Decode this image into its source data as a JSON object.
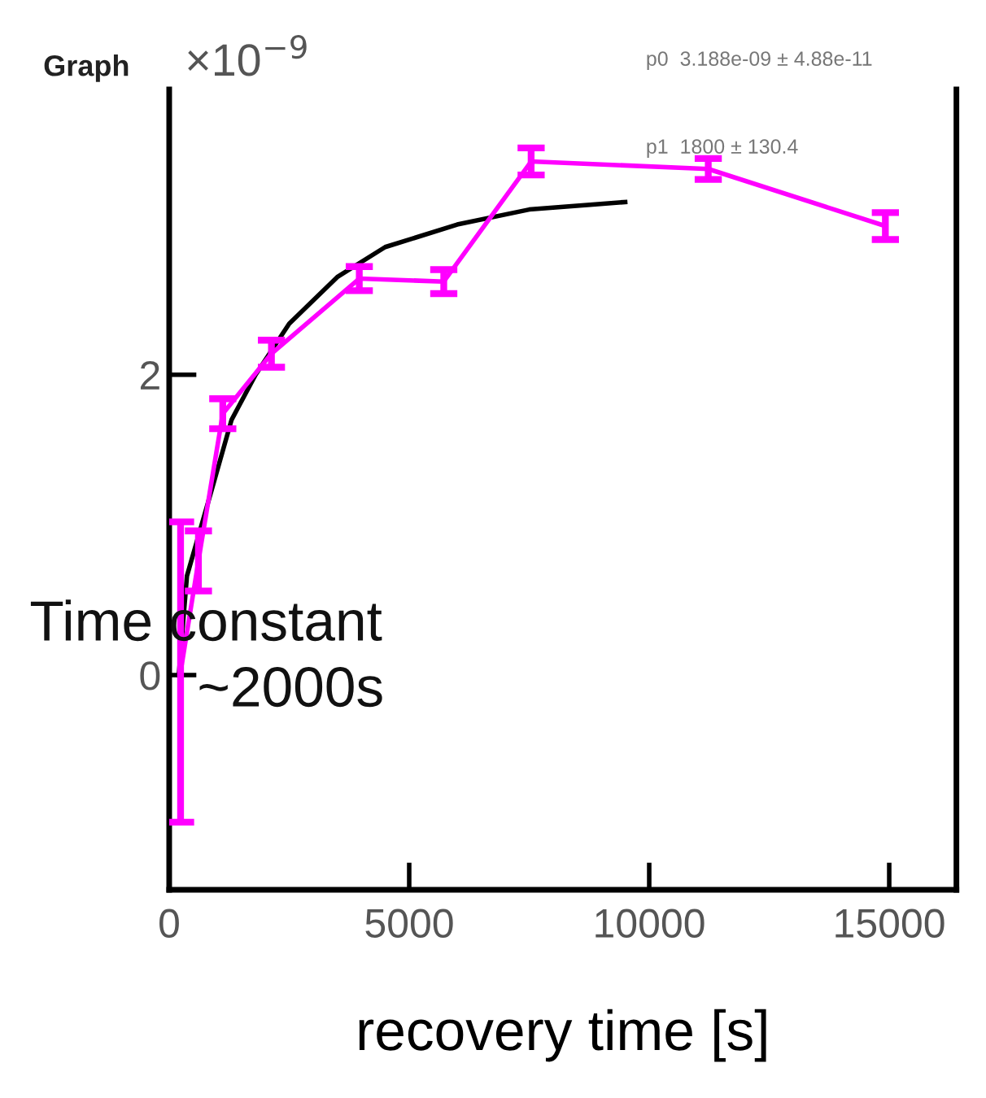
{
  "chart_data": {
    "type": "line",
    "title": "Graph",
    "xlabel": "recovery time [s]",
    "xlim": [
      0,
      16400
    ],
    "ylim": [
      -1.43,
      3.9
    ],
    "xticks": [
      0,
      5000,
      10000,
      15000
    ],
    "yticks": [
      0,
      2
    ],
    "grid": false,
    "legend": false,
    "marker": "none",
    "line_style": "solid",
    "series": [
      {
        "color": "#ff00ff",
        "x": [
          237,
          609,
          1116,
          2130,
          3960,
          5720,
          7540,
          11230,
          14920
        ],
        "values": [
          0.02,
          0.76,
          1.74,
          2.14,
          2.64,
          2.62,
          3.42,
          3.37,
          2.99
        ],
        "errors": [
          1.0,
          0.2,
          0.1,
          0.09,
          0.08,
          0.08,
          0.09,
          0.07,
          0.09
        ]
      },
      {
        "color": "#000000",
        "x": [
          200,
          370,
          900,
          1300,
          1800,
          2500,
          3500,
          4500,
          6000,
          7500,
          9500
        ],
        "values": [
          0.0,
          0.66,
          1.25,
          1.7,
          2.0,
          2.34,
          2.65,
          2.85,
          3.0,
          3.1,
          3.15
        ]
      }
    ],
    "annotations": [
      "×10$^{−9}$",
      "p0  3.188e-09 ± 4.88e-11",
      "p1  1800 ± 130.4",
      "Time constant",
      "~2000s"
    ]
  }
}
